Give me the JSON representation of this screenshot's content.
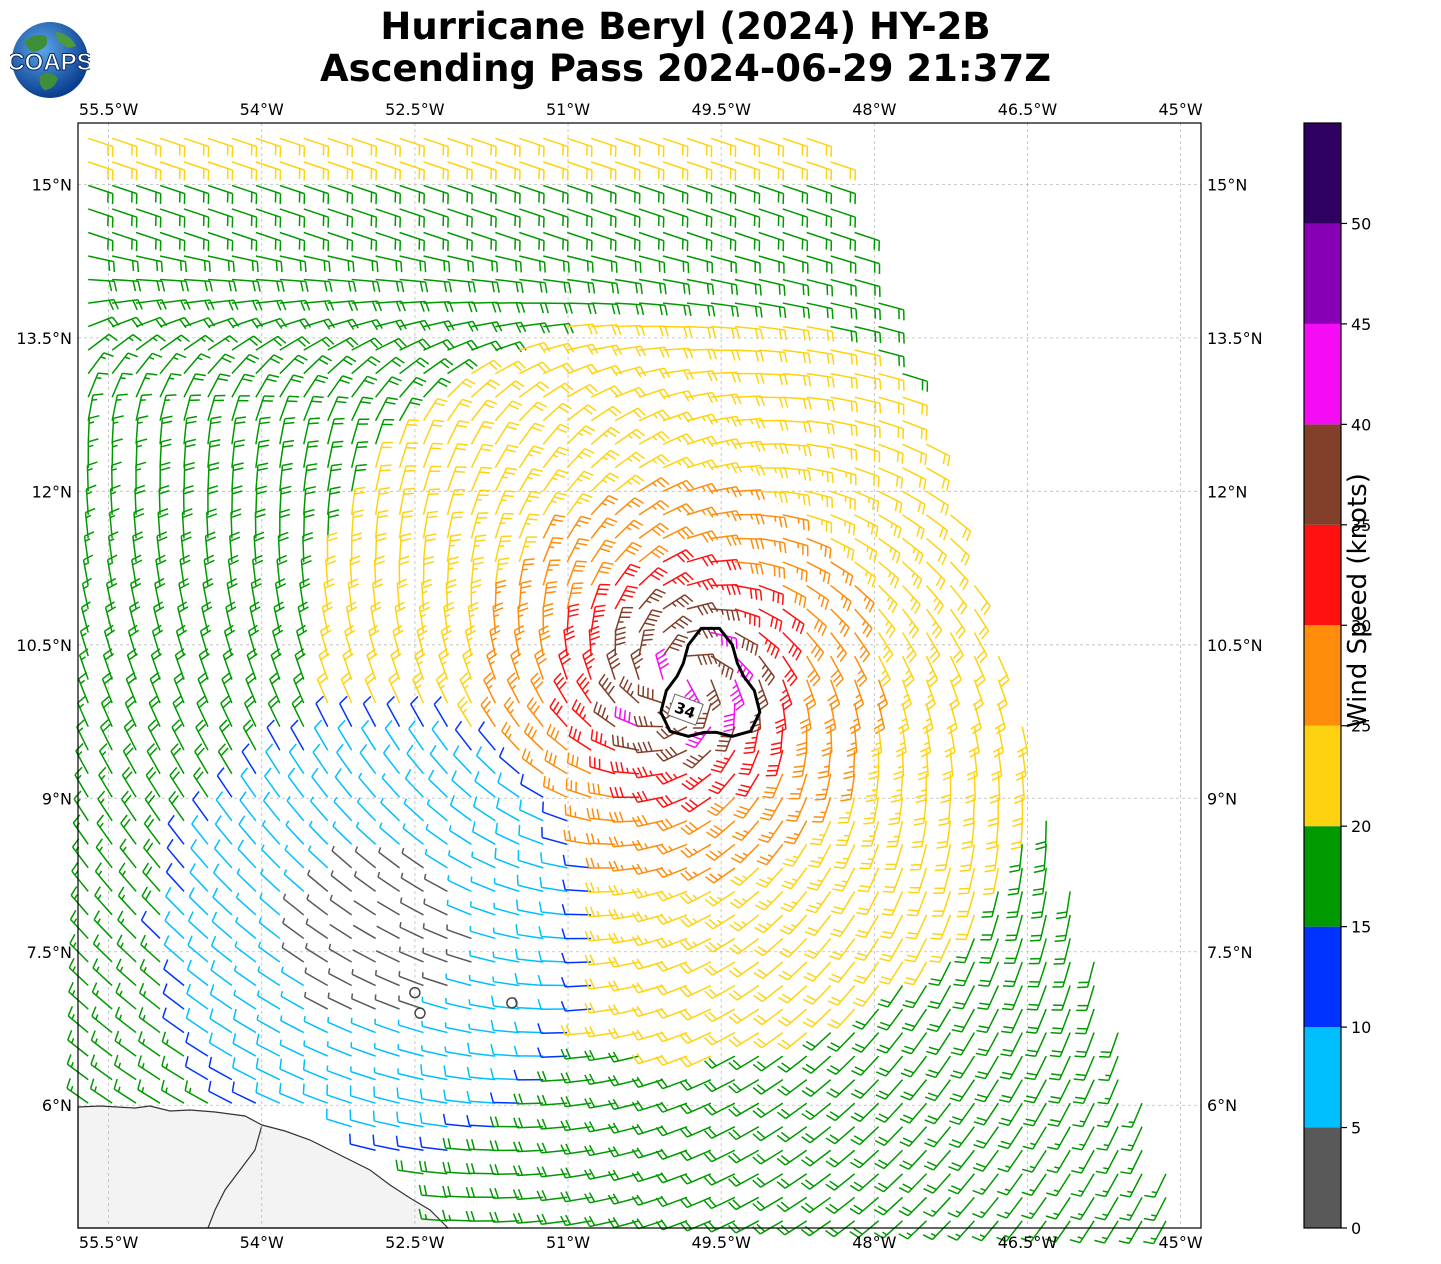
{
  "title": {
    "line1": "Hurricane Beryl (2024) HY-2B",
    "line2": "Ascending Pass 2024-06-29 21:37Z"
  },
  "logo": {
    "text": "COAPS",
    "icon": "globe-logo-icon"
  },
  "map": {
    "extent": {
      "lon_min": -55.8,
      "lon_max": -44.8,
      "lat_min": 4.8,
      "lat_max": 15.6
    },
    "lon_ticks": [
      {
        "value": -55.5,
        "label": "55.5°W"
      },
      {
        "value": -54.0,
        "label": "54°W"
      },
      {
        "value": -52.5,
        "label": "52.5°W"
      },
      {
        "value": -51.0,
        "label": "51°W"
      },
      {
        "value": -49.5,
        "label": "49.5°W"
      },
      {
        "value": -48.0,
        "label": "48°W"
      },
      {
        "value": -46.5,
        "label": "46.5°W"
      },
      {
        "value": -45.0,
        "label": "45°W"
      }
    ],
    "lat_ticks": [
      {
        "value": 15.0,
        "label": "15°N"
      },
      {
        "value": 13.5,
        "label": "13.5°N"
      },
      {
        "value": 12.0,
        "label": "12°N"
      },
      {
        "value": 10.5,
        "label": "10.5°N"
      },
      {
        "value": 9.0,
        "label": "9°N"
      },
      {
        "value": 7.5,
        "label": "7.5°N"
      },
      {
        "value": 6.0,
        "label": "6°N"
      }
    ],
    "storm_center": {
      "lon": -49.9,
      "lat": 10.15
    },
    "contour": {
      "label": "34",
      "radius_deg": 0.45
    },
    "calm_points": [
      {
        "lon": -52.5,
        "lat": 7.1
      },
      {
        "lon": -52.45,
        "lat": 6.9
      },
      {
        "lon": -51.55,
        "lat": 7.0
      }
    ],
    "swath": {
      "description": "",
      "corners_lon_lat": [
        [
          -55.6,
          15.5
        ],
        [
          -48.5,
          15.5
        ],
        [
          -44.9,
          4.8
        ],
        [
          -55.6,
          4.8
        ]
      ]
    }
  },
  "colorbar": {
    "label": "Wind Speed (knots)",
    "ticks": [
      "0",
      "5",
      "10",
      "15",
      "20",
      "25",
      "30",
      "35",
      "40",
      "45",
      "50"
    ],
    "colors": [
      "#595959",
      "#00bfff",
      "#0033ff",
      "#009900",
      "#ffd211",
      "#ff8c0b",
      "#ff1111",
      "#823f2a",
      "#f50cf5",
      "#8700b3",
      "#2e0060"
    ]
  }
}
